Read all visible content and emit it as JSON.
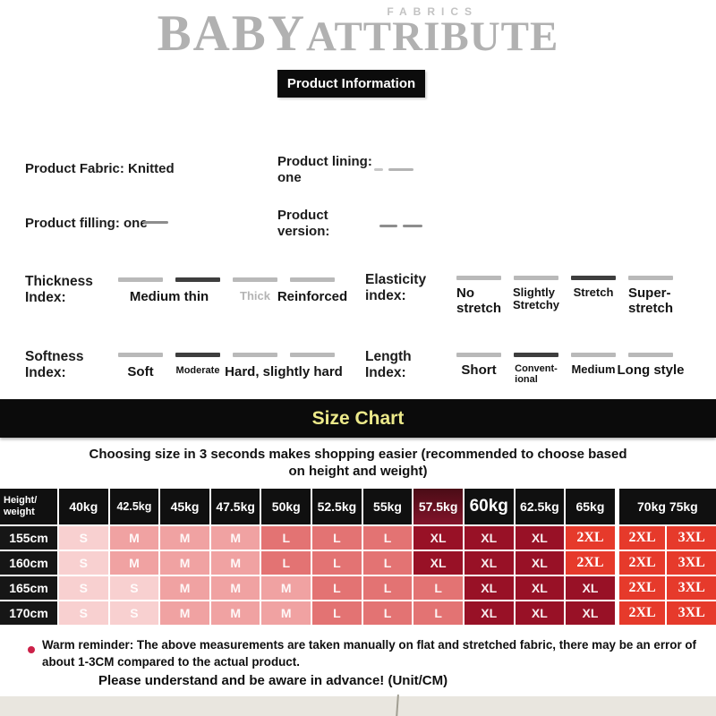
{
  "brand": {
    "fabrics": "FABRICS",
    "baby": "BABY",
    "attribute": "ATTRIBUTE"
  },
  "header": {
    "product_info_label": "Product Information"
  },
  "attributes": {
    "fabric": "Product Fabric: Knitted",
    "lining": "Product lining:\none",
    "filling": "Product filling: one",
    "version": "Product\nversion:"
  },
  "indices": [
    {
      "name": "thickness",
      "title": "Thickness\nIndex:",
      "bars": [
        "light",
        "dark",
        "light",
        "light"
      ],
      "labels": [
        {
          "text": "Medium thin",
          "start": 1,
          "span": 2,
          "style": "bold"
        },
        {
          "text": "Thick",
          "start": 3,
          "span": 1,
          "style": "muted"
        },
        {
          "text": "Reinforced",
          "start": 4,
          "span": 1,
          "style": "bold"
        }
      ]
    },
    {
      "name": "elasticity",
      "title": "Elasticity\nindex:",
      "bars": [
        "light",
        "light",
        "dark",
        "light"
      ],
      "labels": [
        {
          "text": "No\nstretch",
          "start": 1,
          "span": 1,
          "style": "bold"
        },
        {
          "text": "Slightly\nStretchy",
          "start": 2,
          "span": 1,
          "style": "semi"
        },
        {
          "text": "Stretch",
          "start": 3,
          "span": 1,
          "style": "semi"
        },
        {
          "text": "Super-\nstretch",
          "start": 4,
          "span": 1,
          "style": "bold"
        }
      ]
    },
    {
      "name": "softness",
      "title": "Softness\nIndex:",
      "bars": [
        "light",
        "dark",
        "light",
        "light"
      ],
      "labels": [
        {
          "text": "Soft",
          "start": 1,
          "span": 1,
          "style": "bold"
        },
        {
          "text": "Moderate",
          "start": 2,
          "span": 1,
          "style": "small"
        },
        {
          "text": "Hard, slightly hard",
          "start": 3,
          "span": 2,
          "style": "bold"
        }
      ]
    },
    {
      "name": "length",
      "title": "Length\nIndex:",
      "bars": [
        "light",
        "dark",
        "light",
        "light"
      ],
      "labels": [
        {
          "text": "Short",
          "start": 1,
          "span": 1,
          "style": "bold"
        },
        {
          "text": "Convent-\nional",
          "start": 2,
          "span": 1,
          "style": "small"
        },
        {
          "text": "Medium",
          "start": 3,
          "span": 1,
          "style": "semi"
        },
        {
          "text": "Long style",
          "start": 4,
          "span": 1,
          "style": "bold"
        }
      ]
    }
  ],
  "size_chart": {
    "banner": "Size Chart",
    "banner_text_color": "#ece98a",
    "subtitle": "Choosing size in 3 seconds makes shopping easier (recommended to choose based on height and weight)",
    "corner_label": "Height/\nweight",
    "weights": [
      {
        "label": "40kg"
      },
      {
        "label": "42.5kg",
        "small": true
      },
      {
        "label": "45kg"
      },
      {
        "label": "47.5kg"
      },
      {
        "label": "50kg"
      },
      {
        "label": "52.5kg"
      },
      {
        "label": "55kg"
      },
      {
        "label": "57.5kg",
        "highlight": true
      },
      {
        "label": "60kg",
        "big": true
      },
      {
        "label": "62.5kg"
      },
      {
        "label": "65kg"
      },
      {
        "label": "70kg",
        "gap_before": true,
        "merge_next": true
      },
      {
        "label": "75kg"
      }
    ],
    "rows": [
      {
        "height": "155cm",
        "sizes": [
          "S",
          "M",
          "M",
          "M",
          "L",
          "L",
          "L",
          "XL",
          "XL",
          "XL",
          "2XL",
          "2XL",
          "3XL"
        ]
      },
      {
        "height": "160cm",
        "sizes": [
          "S",
          "M",
          "M",
          "M",
          "L",
          "L",
          "L",
          "XL",
          "XL",
          "XL",
          "2XL",
          "2XL",
          "3XL"
        ]
      },
      {
        "height": "165cm",
        "sizes": [
          "S",
          "S",
          "M",
          "M",
          "M",
          "L",
          "L",
          "L",
          "XL",
          "XL",
          "XL",
          "2XL",
          "3XL"
        ]
      },
      {
        "height": "170cm",
        "sizes": [
          "S",
          "S",
          "M",
          "M",
          "M",
          "L",
          "L",
          "L",
          "XL",
          "XL",
          "XL",
          "2XL",
          "3XL"
        ]
      }
    ],
    "size_colors": {
      "S": "#f8d0d0",
      "M": "#f0a2a2",
      "L": "#e37373",
      "XL": "#981126",
      "2XL": "#e63a2b",
      "3XL": "#e63a2b"
    }
  },
  "footer": {
    "reminder": "Warm reminder: The above measurements are taken manually on flat and stretched fabric, there may be an error of about 1-3CM compared to the actual product.",
    "note": "Please understand and be aware in advance! (Unit/CM)",
    "bullet_color": "#cc2148"
  }
}
